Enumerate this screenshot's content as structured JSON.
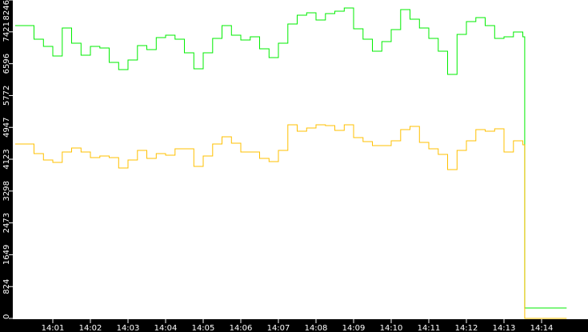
{
  "chart_data": {
    "type": "line",
    "title": "",
    "xlabel": "",
    "ylabel": "",
    "ylim": [
      0,
      8246
    ],
    "xlim": [
      "14:00:00",
      "14:14:40"
    ],
    "grid": false,
    "background": "#ffffff",
    "axis_color": "#000000",
    "y_ticks": [
      "0",
      "824",
      "1649",
      "2473",
      "3298",
      "4123",
      "4947",
      "5772",
      "6596",
      "7421",
      "8246"
    ],
    "x_ticks": [
      "14:01",
      "14:02",
      "14:03",
      "14:04",
      "14:05",
      "14:06",
      "14:07",
      "14:08",
      "14:09",
      "14:10",
      "14:11",
      "14:12",
      "14:13",
      "14:14"
    ],
    "x": [
      "14:00:00",
      "14:00:15",
      "14:00:30",
      "14:00:45",
      "14:01:00",
      "14:01:15",
      "14:01:30",
      "14:01:45",
      "14:02:00",
      "14:02:15",
      "14:02:30",
      "14:02:45",
      "14:03:00",
      "14:03:15",
      "14:03:30",
      "14:03:45",
      "14:04:00",
      "14:04:15",
      "14:04:30",
      "14:04:45",
      "14:05:00",
      "14:05:15",
      "14:05:30",
      "14:05:45",
      "14:06:00",
      "14:06:15",
      "14:06:30",
      "14:06:45",
      "14:07:00",
      "14:07:15",
      "14:07:30",
      "14:07:45",
      "14:08:00",
      "14:08:15",
      "14:08:30",
      "14:08:45",
      "14:09:00",
      "14:09:15",
      "14:09:30",
      "14:09:45",
      "14:10:00",
      "14:10:15",
      "14:10:30",
      "14:10:45",
      "14:11:00",
      "14:11:15",
      "14:11:30",
      "14:11:45",
      "14:12:00",
      "14:12:15",
      "14:12:30",
      "14:12:45",
      "14:13:00",
      "14:13:15",
      "14:13:30",
      "14:13:33",
      "14:14:40"
    ],
    "series": [
      {
        "color": "#00ee00",
        "values": [
          7583,
          7583,
          7231,
          7045,
          6796,
          7521,
          7128,
          6817,
          7045,
          7003,
          6630,
          6444,
          6693,
          7066,
          6962,
          7273,
          7335,
          7231,
          6879,
          6465,
          6879,
          7252,
          7583,
          7335,
          7211,
          7293,
          6983,
          6755,
          7128,
          7625,
          7853,
          7915,
          7729,
          7894,
          7956,
          8039,
          7501,
          7231,
          6921,
          7169,
          7480,
          7998,
          7749,
          7521,
          7252,
          6921,
          6320,
          7356,
          7687,
          7791,
          7583,
          7252,
          7293,
          7418,
          7293,
          270,
          270
        ]
      },
      {
        "color": "#ffc000",
        "values": [
          4517,
          4517,
          4268,
          4103,
          4040,
          4310,
          4413,
          4310,
          4165,
          4206,
          4165,
          3895,
          4103,
          4351,
          4144,
          4268,
          4227,
          4393,
          4393,
          3937,
          4206,
          4517,
          4703,
          4538,
          4310,
          4310,
          4144,
          4061,
          4351,
          5014,
          4848,
          4931,
          5014,
          4993,
          4869,
          5014,
          4683,
          4579,
          4476,
          4476,
          4600,
          4890,
          4973,
          4558,
          4393,
          4248,
          3854,
          4351,
          4600,
          4890,
          4848,
          4911,
          4310,
          4600,
          4496,
          0,
          0
        ]
      }
    ]
  }
}
